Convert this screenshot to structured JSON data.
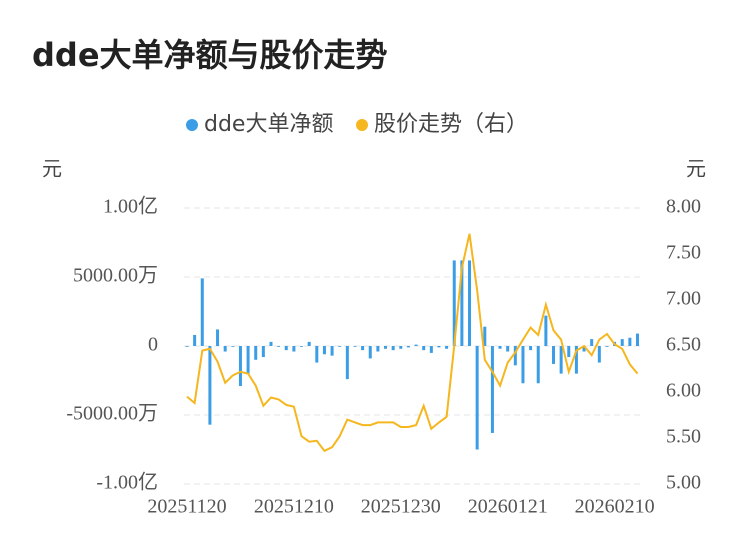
{
  "chart_data": {
    "type": "bar-line",
    "title": "dde大单净额与股价走势",
    "y_unit": "元",
    "y2_unit": "元",
    "categories": [
      "20251120",
      null,
      null,
      null,
      null,
      null,
      null,
      null,
      null,
      null,
      null,
      null,
      null,
      null,
      "20251210",
      null,
      null,
      null,
      null,
      null,
      null,
      null,
      null,
      null,
      null,
      null,
      null,
      null,
      "20251230",
      null,
      null,
      null,
      null,
      null,
      null,
      null,
      null,
      null,
      null,
      null,
      null,
      null,
      "20260121",
      null,
      null,
      null,
      null,
      null,
      null,
      null,
      null,
      null,
      null,
      null,
      null,
      null,
      "20260210",
      null,
      null,
      null
    ],
    "series": [
      {
        "name": "dde大单净额",
        "type": "bar",
        "color": "#3a9de6",
        "values": [
          0,
          800,
          4900,
          -5700,
          1200,
          -400,
          0,
          -2900,
          -2000,
          -1000,
          -800,
          300,
          0,
          -300,
          -400,
          0,
          300,
          -1200,
          -600,
          -700,
          0,
          -2400,
          0,
          -300,
          -900,
          -400,
          -200,
          -300,
          -200,
          -100,
          100,
          -300,
          -500,
          -100,
          -200,
          6200,
          6200,
          6200,
          -7500,
          1400,
          -6300,
          -200,
          -400,
          -1400,
          -2700,
          -300,
          -2700,
          2200,
          -1300,
          -2000,
          -800,
          -2000,
          -400,
          500,
          -1200,
          0,
          300,
          500,
          600,
          900
        ]
      },
      {
        "name": "股价走势（右）",
        "type": "line",
        "axis": "y2",
        "color": "#f5b61e",
        "values": [
          5.95,
          5.88,
          6.45,
          6.47,
          6.33,
          6.1,
          6.18,
          6.22,
          6.2,
          6.07,
          5.85,
          5.94,
          5.92,
          5.86,
          5.84,
          5.52,
          5.46,
          5.47,
          5.36,
          5.4,
          5.52,
          5.7,
          5.67,
          5.64,
          5.64,
          5.67,
          5.67,
          5.67,
          5.62,
          5.62,
          5.64,
          5.85,
          5.6,
          5.67,
          5.73,
          6.5,
          7.35,
          7.72,
          7.1,
          6.35,
          6.22,
          6.07,
          6.32,
          6.43,
          6.57,
          6.7,
          6.62,
          6.95,
          6.67,
          6.57,
          6.22,
          6.45,
          6.5,
          6.4,
          6.57,
          6.63,
          6.52,
          6.47,
          6.3,
          6.2
        ]
      }
    ],
    "ylim": [
      -10000,
      10000
    ],
    "yticks": [
      {
        "value": -10000,
        "label": "-1.00亿"
      },
      {
        "value": -5000,
        "label": "-5000.00万"
      },
      0,
      {
        "value": 5000,
        "label": "5000.00万"
      },
      {
        "value": 10000,
        "label": "1.00亿"
      }
    ],
    "y2lim": [
      5,
      8
    ],
    "y2ticks": [
      {
        "value": 5,
        "label": "5.00"
      },
      {
        "value": 5.5,
        "label": "5.50"
      },
      {
        "value": 6,
        "label": "6.00"
      },
      {
        "value": 6.5,
        "label": "6.50"
      },
      {
        "value": 7,
        "label": "7.00"
      },
      {
        "value": 7.5,
        "label": "7.50"
      },
      {
        "value": 8,
        "label": "8.00"
      }
    ],
    "grid": true
  }
}
